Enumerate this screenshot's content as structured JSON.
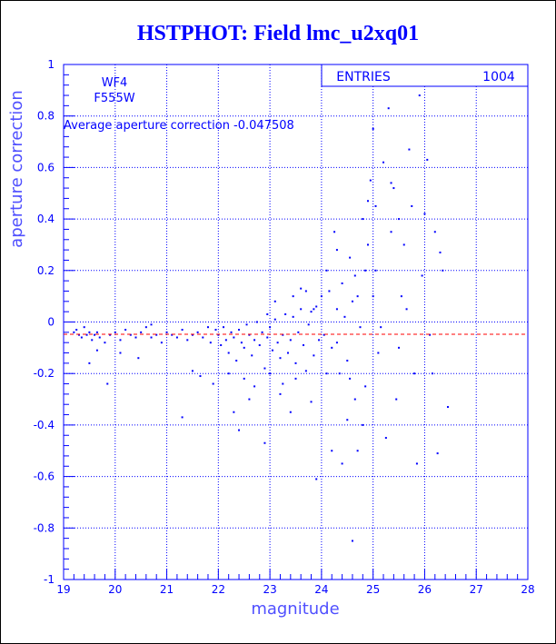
{
  "chart_data": {
    "type": "scatter",
    "title": "HSTPHOT: Field lmc_u2xq01",
    "xlabel": "magnitude",
    "ylabel": "aperture correction",
    "xlim": [
      19,
      28
    ],
    "ylim": [
      -1,
      1
    ],
    "x_ticks": [
      "19",
      "20",
      "21",
      "22",
      "23",
      "24",
      "25",
      "26",
      "27",
      "28"
    ],
    "y_ticks": [
      "-1",
      "-0.8",
      "-0.6",
      "-0.4",
      "-0.2",
      "0",
      "0.2",
      "0.4",
      "0.6",
      "0.8",
      "1"
    ],
    "grid": true,
    "annotations": {
      "chip": "WF4",
      "filter": "F555W",
      "average_text": "Average aperture correction -0.047508"
    },
    "stats_box": {
      "label": "ENTRIES",
      "value": "1004"
    },
    "average_line": {
      "y": -0.047508,
      "color": "#ff0000",
      "style": "dashed"
    },
    "colors": {
      "axis": "#0000ff",
      "points": "#0000ff",
      "average_line": "#ff0000",
      "title": "#0000ff"
    },
    "series": [
      {
        "points": [
          [
            19.2,
            -0.04
          ],
          [
            19.25,
            -0.03
          ],
          [
            19.3,
            -0.05
          ],
          [
            19.35,
            -0.06
          ],
          [
            19.4,
            -0.02
          ],
          [
            19.45,
            -0.05
          ],
          [
            19.5,
            -0.04
          ],
          [
            19.55,
            -0.07
          ],
          [
            19.6,
            -0.05
          ],
          [
            19.65,
            -0.04
          ],
          [
            19.7,
            -0.06
          ],
          [
            19.8,
            -0.08
          ],
          [
            19.9,
            -0.05
          ],
          [
            20.0,
            -0.04
          ],
          [
            20.1,
            -0.07
          ],
          [
            20.2,
            -0.03
          ],
          [
            20.3,
            -0.05
          ],
          [
            20.4,
            -0.06
          ],
          [
            20.5,
            -0.04
          ],
          [
            20.6,
            -0.02
          ],
          [
            20.7,
            -0.06
          ],
          [
            20.8,
            -0.05
          ],
          [
            20.9,
            -0.08
          ],
          [
            21.0,
            -0.04
          ],
          [
            21.1,
            -0.05
          ],
          [
            21.2,
            -0.06
          ],
          [
            21.3,
            -0.03
          ],
          [
            21.4,
            -0.07
          ],
          [
            21.5,
            -0.05
          ],
          [
            21.6,
            -0.04
          ],
          [
            21.7,
            -0.06
          ],
          [
            21.8,
            -0.02
          ],
          [
            19.5,
            -0.16
          ],
          [
            19.65,
            -0.11
          ],
          [
            19.85,
            -0.24
          ],
          [
            20.1,
            -0.12
          ],
          [
            20.45,
            -0.14
          ],
          [
            20.7,
            -0.01
          ],
          [
            21.3,
            -0.37
          ],
          [
            21.5,
            -0.19
          ],
          [
            21.65,
            -0.21
          ],
          [
            21.9,
            -0.24
          ],
          [
            21.85,
            -0.08
          ],
          [
            21.95,
            -0.03
          ],
          [
            22.0,
            -0.05
          ],
          [
            22.05,
            -0.09
          ],
          [
            22.1,
            -0.02
          ],
          [
            22.15,
            -0.07
          ],
          [
            22.2,
            -0.12
          ],
          [
            22.25,
            -0.04
          ],
          [
            22.3,
            -0.06
          ],
          [
            22.35,
            -0.15
          ],
          [
            22.4,
            -0.03
          ],
          [
            22.45,
            -0.08
          ],
          [
            22.5,
            -0.1
          ],
          [
            22.55,
            -0.01
          ],
          [
            22.6,
            -0.05
          ],
          [
            22.65,
            -0.13
          ],
          [
            22.7,
            -0.07
          ],
          [
            22.75,
            0.0
          ],
          [
            22.8,
            -0.09
          ],
          [
            22.85,
            -0.04
          ],
          [
            22.9,
            -0.18
          ],
          [
            22.95,
            -0.06
          ],
          [
            23.0,
            -0.02
          ],
          [
            23.05,
            -0.11
          ],
          [
            23.1,
            0.01
          ],
          [
            23.15,
            -0.08
          ],
          [
            23.2,
            -0.14
          ],
          [
            23.25,
            -0.05
          ],
          [
            23.3,
            0.03
          ],
          [
            23.35,
            -0.12
          ],
          [
            23.4,
            -0.07
          ],
          [
            23.45,
            0.02
          ],
          [
            23.5,
            -0.16
          ],
          [
            23.55,
            -0.04
          ],
          [
            23.6,
            0.05
          ],
          [
            23.65,
            -0.09
          ],
          [
            23.7,
            -0.19
          ],
          [
            23.75,
            -0.01
          ],
          [
            23.8,
            0.04
          ],
          [
            23.85,
            -0.13
          ],
          [
            23.9,
            0.06
          ],
          [
            23.95,
            -0.07
          ],
          [
            22.3,
            -0.35
          ],
          [
            22.6,
            -0.3
          ],
          [
            22.9,
            -0.47
          ],
          [
            23.2,
            -0.28
          ],
          [
            23.5,
            -0.22
          ],
          [
            23.8,
            -0.31
          ],
          [
            23.9,
            -0.61
          ],
          [
            22.4,
            -0.42
          ],
          [
            24.0,
            0.1
          ],
          [
            24.05,
            -0.05
          ],
          [
            24.1,
            0.2
          ],
          [
            24.15,
            0.12
          ],
          [
            24.2,
            -0.1
          ],
          [
            24.25,
            0.35
          ],
          [
            24.3,
            0.05
          ],
          [
            24.35,
            -0.2
          ],
          [
            24.4,
            0.15
          ],
          [
            24.45,
            0.02
          ],
          [
            24.5,
            -0.15
          ],
          [
            24.55,
            0.25
          ],
          [
            24.6,
            0.08
          ],
          [
            24.65,
            -0.3
          ],
          [
            24.7,
            0.1
          ],
          [
            24.75,
            -0.02
          ],
          [
            24.8,
            0.4
          ],
          [
            24.85,
            -0.25
          ],
          [
            24.9,
            0.3
          ],
          [
            24.95,
            0.55
          ],
          [
            25.0,
            0.1
          ],
          [
            24.2,
            -0.5
          ],
          [
            24.4,
            -0.55
          ],
          [
            24.6,
            -0.85
          ],
          [
            24.8,
            -0.4
          ],
          [
            25.0,
            0.75
          ],
          [
            24.3,
            0.28
          ],
          [
            24.9,
            0.47
          ],
          [
            24.5,
            -0.38
          ],
          [
            25.05,
            0.2
          ],
          [
            25.1,
            -0.12
          ],
          [
            25.2,
            0.62
          ],
          [
            25.3,
            0.83
          ],
          [
            25.4,
            0.52
          ],
          [
            25.5,
            -0.1
          ],
          [
            25.6,
            0.3
          ],
          [
            25.7,
            0.67
          ],
          [
            25.8,
            -0.2
          ],
          [
            25.9,
            0.88
          ],
          [
            25.95,
            0.18
          ],
          [
            26.0,
            0.42
          ],
          [
            26.05,
            0.63
          ],
          [
            26.1,
            -0.05
          ],
          [
            26.2,
            0.35
          ],
          [
            26.25,
            -0.51
          ],
          [
            26.3,
            0.27
          ],
          [
            26.35,
            0.2
          ],
          [
            26.45,
            -0.33
          ],
          [
            25.25,
            -0.45
          ],
          [
            25.45,
            -0.3
          ],
          [
            25.65,
            0.05
          ],
          [
            25.85,
            -0.55
          ],
          [
            26.15,
            -0.2
          ],
          [
            25.35,
            0.54
          ],
          [
            25.55,
            0.1
          ],
          [
            25.75,
            0.45
          ],
          [
            25.15,
            -0.02
          ],
          [
            24.7,
            -0.5
          ],
          [
            23.4,
            -0.35
          ],
          [
            23.0,
            -0.2
          ],
          [
            23.1,
            0.08
          ],
          [
            23.6,
            0.13
          ],
          [
            23.7,
            0.12
          ],
          [
            23.25,
            -0.24
          ],
          [
            22.7,
            -0.25
          ],
          [
            22.5,
            -0.22
          ],
          [
            22.2,
            -0.2
          ],
          [
            22.95,
            0.03
          ],
          [
            23.45,
            0.1
          ],
          [
            23.85,
            0.05
          ],
          [
            24.1,
            -0.2
          ],
          [
            24.3,
            -0.08
          ],
          [
            24.55,
            -0.22
          ],
          [
            24.65,
            0.18
          ],
          [
            24.85,
            0.2
          ],
          [
            25.05,
            0.45
          ],
          [
            25.35,
            0.35
          ],
          [
            25.5,
            0.4
          ]
        ]
      }
    ]
  }
}
